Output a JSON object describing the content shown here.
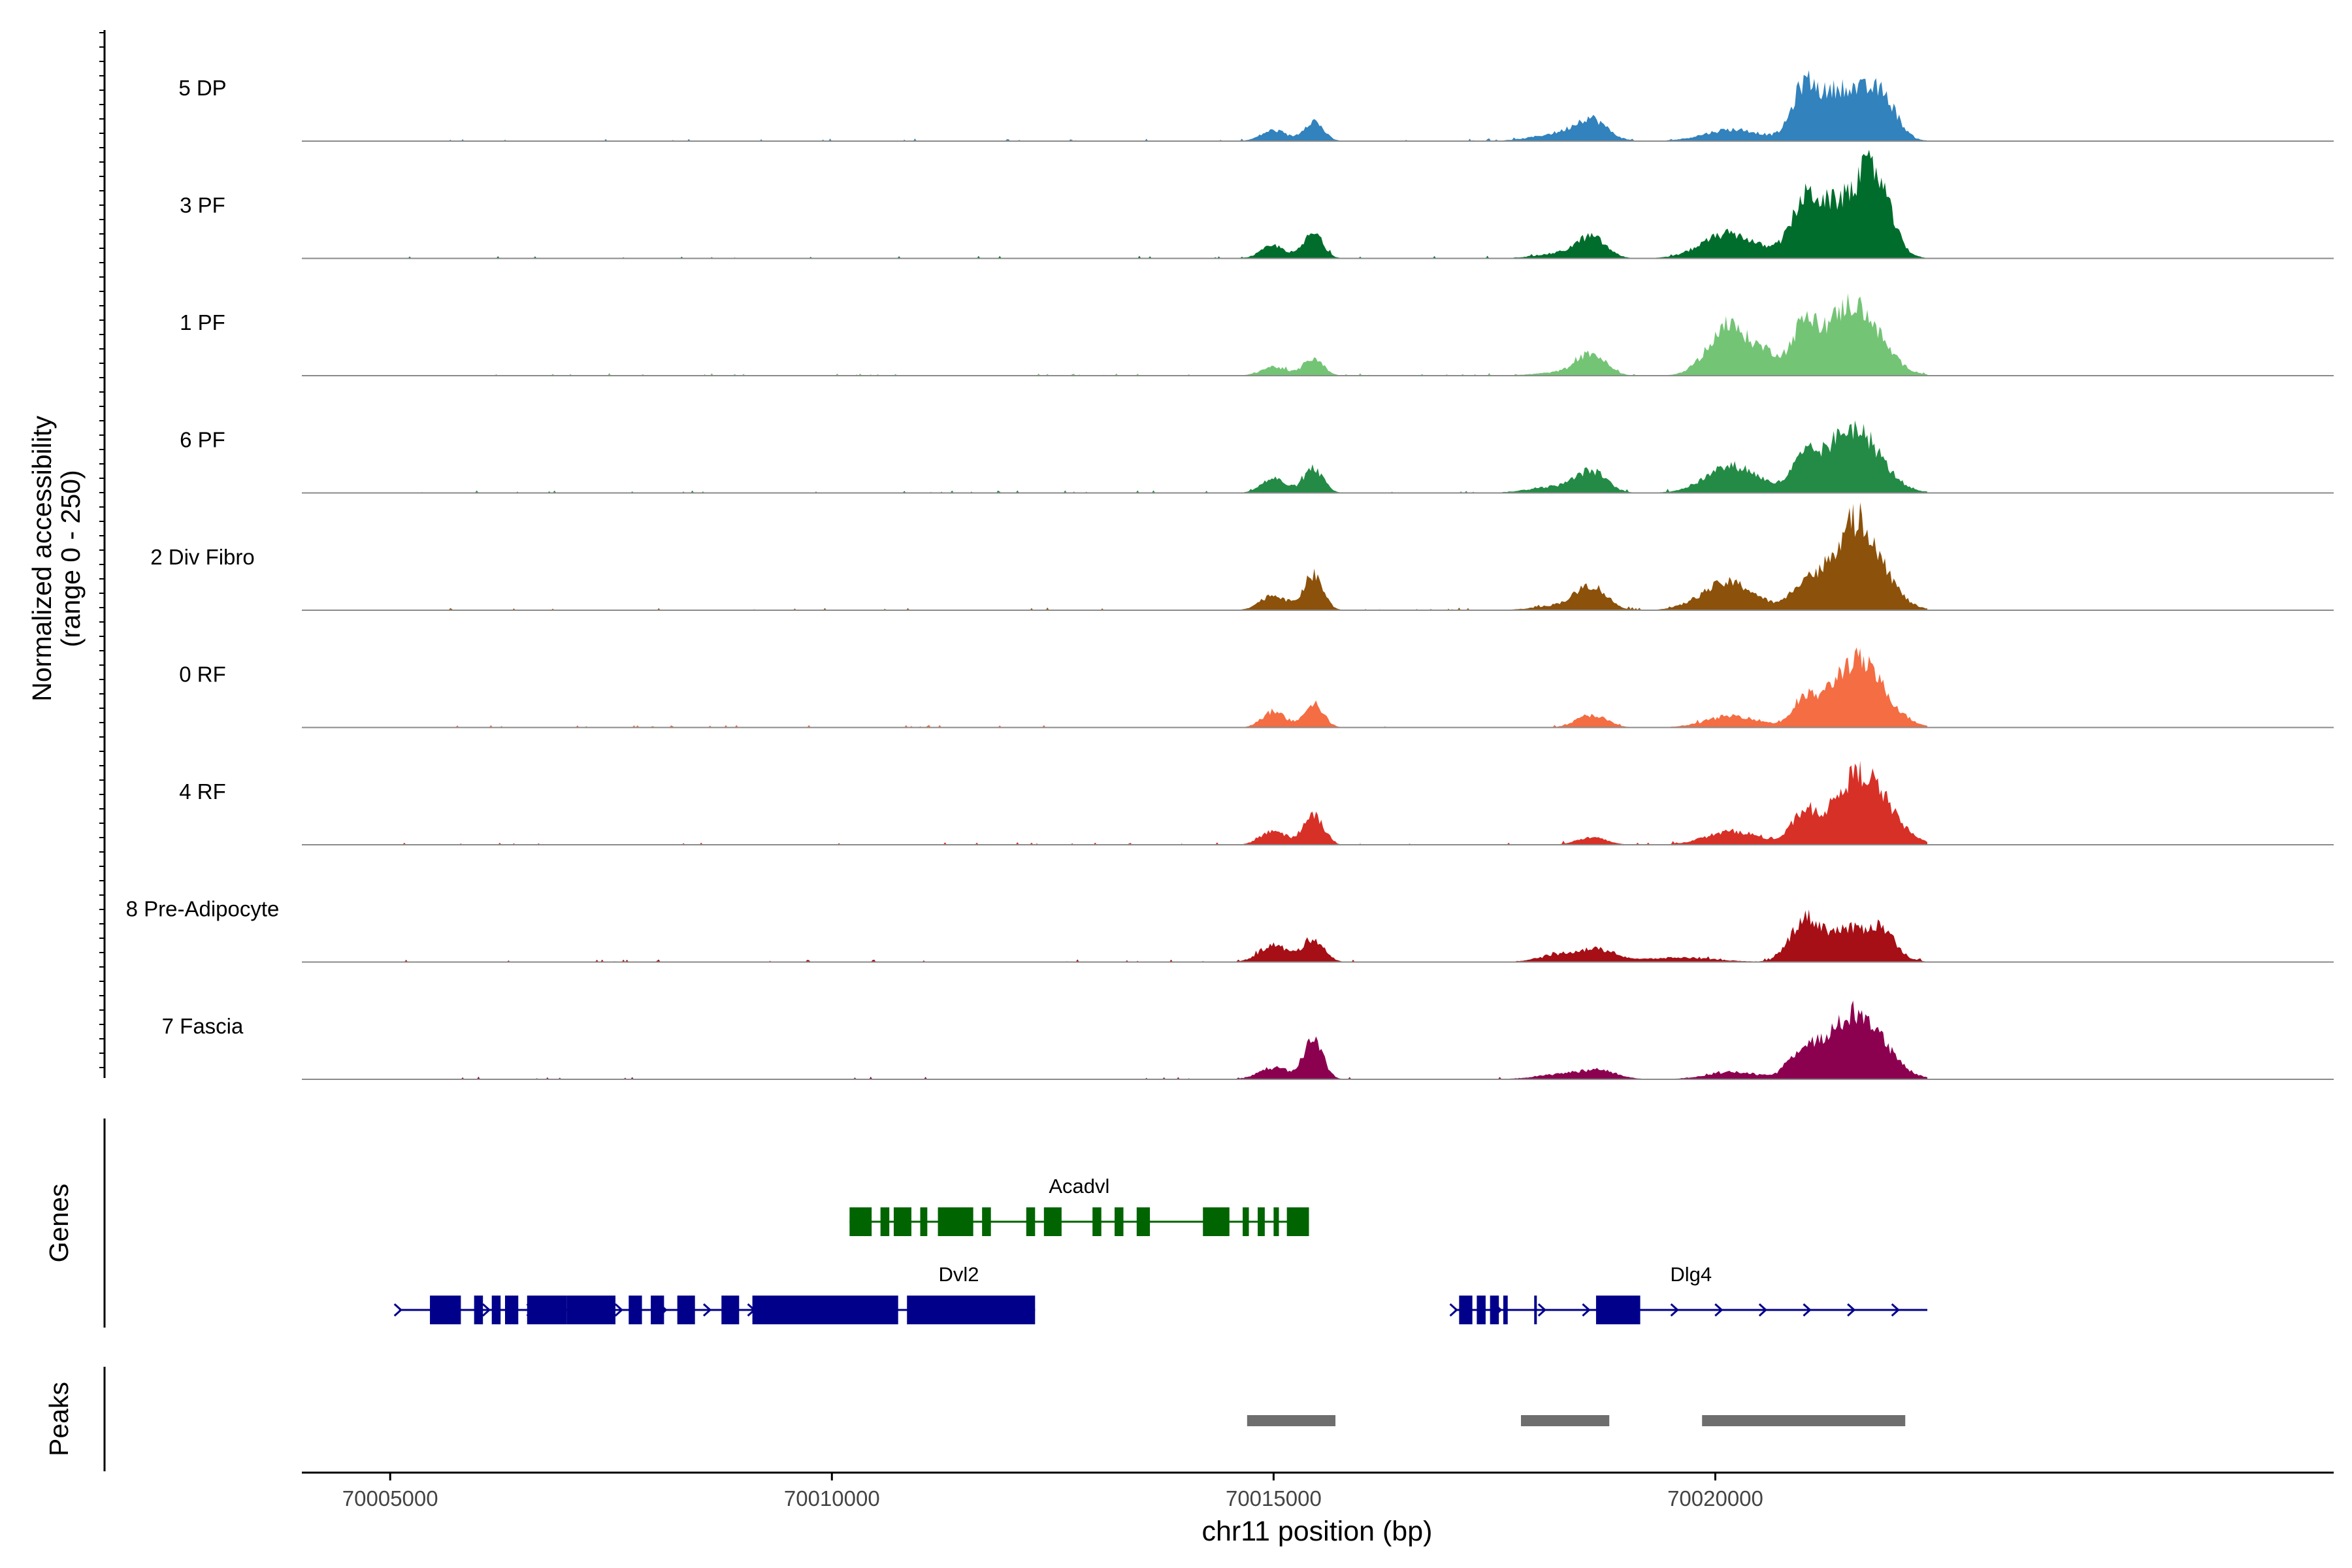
{
  "chart_data": {
    "type": "area",
    "title": "",
    "ylabel_line1": "Normalized accessibility",
    "ylabel_line2": "(range 0 - 250)",
    "xlabel": "chr11 position (bp)",
    "ylim": [
      0,
      250
    ],
    "xlim": [
      70004000,
      70027000
    ],
    "x_ticks": [
      70005000,
      70010000,
      70015000,
      70020000
    ],
    "x_tick_labels": [
      "70005000",
      "70010000",
      "70015000",
      "70020000"
    ],
    "tracks_label_genes": "Genes",
    "tracks_label_peaks": "Peaks",
    "series": [
      {
        "name": "5 DP",
        "color": "#3182bd",
        "peaks": [
          [
            70015000,
            24,
            140
          ],
          [
            70015450,
            45,
            110
          ],
          [
            70018300,
            18,
            320
          ],
          [
            70018600,
            40,
            170
          ],
          [
            70020200,
            26,
            320
          ],
          [
            70021000,
            92,
            130
          ],
          [
            70021450,
            120,
            300
          ],
          [
            70021900,
            70,
            160
          ]
        ]
      },
      {
        "name": "3 PF",
        "color": "#006d2c",
        "peaks": [
          [
            70015000,
            28,
            140
          ],
          [
            70015450,
            55,
            110
          ],
          [
            70018300,
            12,
            300
          ],
          [
            70018600,
            42,
            160
          ],
          [
            70020150,
            55,
            300
          ],
          [
            70021000,
            70,
            140
          ],
          [
            70021350,
            120,
            320
          ],
          [
            70021800,
            155,
            180
          ]
        ]
      },
      {
        "name": "1 PF",
        "color": "#74c476",
        "peaks": [
          [
            70015000,
            20,
            140
          ],
          [
            70015450,
            40,
            110
          ],
          [
            70018300,
            8,
            300
          ],
          [
            70018600,
            45,
            160
          ],
          [
            70020150,
            110,
            230
          ],
          [
            70020600,
            40,
            160
          ],
          [
            70021000,
            95,
            130
          ],
          [
            70021550,
            160,
            300
          ]
        ]
      },
      {
        "name": "6 PF",
        "color": "#238b45",
        "peaks": [
          [
            70015000,
            32,
            140
          ],
          [
            70015450,
            54,
            110
          ],
          [
            70018200,
            14,
            300
          ],
          [
            70018600,
            44,
            170
          ],
          [
            70020200,
            60,
            300
          ],
          [
            70021000,
            60,
            140
          ],
          [
            70021550,
            145,
            300
          ]
        ]
      },
      {
        "name": "2 Div Fibro",
        "color": "#8c510a",
        "peaks": [
          [
            70015000,
            34,
            150
          ],
          [
            70015450,
            78,
            110
          ],
          [
            70018300,
            12,
            300
          ],
          [
            70018600,
            48,
            170
          ],
          [
            70020150,
            62,
            300
          ],
          [
            70021000,
            52,
            140
          ],
          [
            70021600,
            200,
            280
          ]
        ]
      },
      {
        "name": "0 RF",
        "color": "#f46d43",
        "peaks": [
          [
            70015000,
            36,
            130
          ],
          [
            70015450,
            55,
            110
          ],
          [
            70018600,
            28,
            170
          ],
          [
            70020200,
            26,
            300
          ],
          [
            70021000,
            48,
            130
          ],
          [
            70021600,
            150,
            300
          ]
        ]
      },
      {
        "name": "4 RF",
        "color": "#d73027",
        "peaks": [
          [
            70015000,
            32,
            140
          ],
          [
            70015450,
            70,
            110
          ],
          [
            70018600,
            16,
            170
          ],
          [
            70020200,
            30,
            300
          ],
          [
            70021000,
            62,
            140
          ],
          [
            70021650,
            160,
            300
          ]
        ]
      },
      {
        "name": "8 Pre-Adipocyte",
        "color": "#a50f15",
        "peaks": [
          [
            70015000,
            38,
            160
          ],
          [
            70015450,
            52,
            120
          ],
          [
            70018300,
            18,
            260
          ],
          [
            70018700,
            22,
            200
          ],
          [
            70019600,
            10,
            400
          ],
          [
            70021000,
            80,
            160
          ],
          [
            70021500,
            72,
            300
          ],
          [
            70021900,
            48,
            150
          ]
        ]
      },
      {
        "name": "7 Fascia",
        "color": "#8c0050",
        "peaks": [
          [
            70015000,
            26,
            170
          ],
          [
            70015450,
            88,
            110
          ],
          [
            70018300,
            12,
            300
          ],
          [
            70018700,
            16,
            200
          ],
          [
            70020200,
            16,
            300
          ],
          [
            70021000,
            60,
            160
          ],
          [
            70021600,
            148,
            300
          ]
        ]
      }
    ],
    "genes": [
      {
        "name": "Acadvl",
        "color": "#006400",
        "start": 70010200,
        "end": 70015400,
        "exons": [
          [
            70010200,
            70010450
          ],
          [
            70010550,
            70010650
          ],
          [
            70010700,
            70010900
          ],
          [
            70011000,
            70011080
          ],
          [
            70011200,
            70011600
          ],
          [
            70011700,
            70011800
          ],
          [
            70012200,
            70012300
          ],
          [
            70012400,
            70012600
          ],
          [
            70012950,
            70013050
          ],
          [
            70013200,
            70013300
          ],
          [
            70013450,
            70013600
          ],
          [
            70014200,
            70014500
          ],
          [
            70014650,
            70014720
          ],
          [
            70014820,
            70014900
          ],
          [
            70015000,
            70015060
          ],
          [
            70015150,
            70015400
          ]
        ]
      },
      {
        "name": "Dvl2",
        "color": "#00008b",
        "start": 70005100,
        "end": 70012300,
        "exons": [
          [
            70005450,
            70005800
          ],
          [
            70005950,
            70006050
          ],
          [
            70006150,
            70006250
          ],
          [
            70006300,
            70006450
          ],
          [
            70006550,
            70007000
          ],
          [
            70007000,
            70007550
          ],
          [
            70007700,
            70007850
          ],
          [
            70007950,
            70008100
          ],
          [
            70008250,
            70008450
          ],
          [
            70008750,
            70008950
          ],
          [
            70009100,
            70010750
          ],
          [
            70010850,
            70012300
          ]
        ]
      },
      {
        "name": "Dlg4",
        "color": "#00008b",
        "start": 70017050,
        "end": 70022400,
        "exons": [
          [
            70017100,
            70017250
          ],
          [
            70017300,
            70017400
          ],
          [
            70017450,
            70017550
          ],
          [
            70017600,
            70017650
          ],
          [
            70017950,
            70017990
          ],
          [
            70018650,
            70019150
          ]
        ]
      }
    ],
    "peaks": [
      [
        70014700,
        70015700
      ],
      [
        70017800,
        70018800
      ],
      [
        70019850,
        70022150
      ]
    ]
  }
}
